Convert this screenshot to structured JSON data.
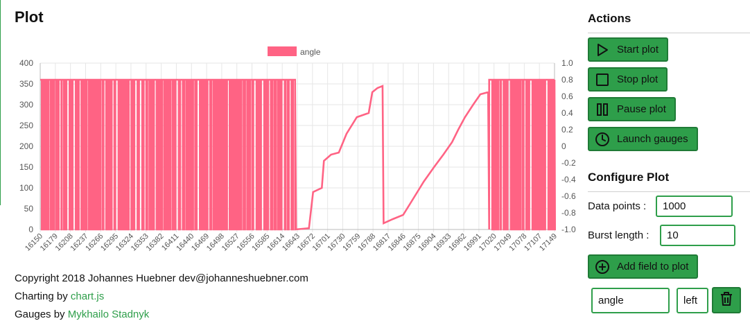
{
  "page": {
    "title": "Plot"
  },
  "chart_data": {
    "type": "line",
    "series": [
      {
        "name": "angle",
        "color": "#ff6384",
        "axis": "left"
      }
    ],
    "legend": {
      "position": "top",
      "label": "angle"
    },
    "y_left": {
      "ylim": [
        0,
        400
      ],
      "ticks": [
        0,
        50,
        100,
        150,
        200,
        250,
        300,
        350,
        400
      ]
    },
    "y_right": {
      "ylim": [
        -1.0,
        1.0
      ],
      "ticks": [
        "-1.0",
        "-0.8",
        "-0.6",
        "-0.4",
        "-0.2",
        "0",
        "0.2",
        "0.4",
        "0.6",
        "0.8",
        "1.0"
      ]
    },
    "x": {
      "range": [
        16150,
        17149
      ],
      "tick_labels": [
        "16150",
        "16179",
        "16208",
        "16237",
        "16266",
        "16295",
        "16324",
        "16353",
        "16382",
        "16411",
        "16440",
        "16469",
        "16498",
        "16527",
        "16556",
        "16585",
        "16614",
        "16643",
        "16672",
        "16701",
        "16730",
        "16759",
        "16788",
        "16817",
        "16846",
        "16875",
        "16904",
        "16933",
        "16962",
        "16991",
        "17020",
        "17049",
        "17078",
        "17107",
        "17149"
      ]
    },
    "grid": true,
    "segments": [
      {
        "kind": "oscillate",
        "x": [
          16150,
          16645
        ],
        "low": 0,
        "high": 360
      },
      {
        "kind": "ramp",
        "points": [
          [
            16645,
            0
          ],
          [
            16672,
            3
          ],
          [
            16680,
            90
          ],
          [
            16697,
            100
          ],
          [
            16701,
            165
          ],
          [
            16715,
            180
          ],
          [
            16730,
            185
          ],
          [
            16745,
            230
          ],
          [
            16765,
            270
          ],
          [
            16788,
            280
          ],
          [
            16795,
            330
          ],
          [
            16805,
            340
          ],
          [
            16815,
            345
          ],
          [
            16817,
            15
          ],
          [
            16835,
            25
          ],
          [
            16855,
            35
          ],
          [
            16870,
            65
          ],
          [
            16885,
            95
          ],
          [
            16895,
            115
          ],
          [
            16915,
            150
          ],
          [
            16933,
            180
          ],
          [
            16950,
            210
          ],
          [
            16962,
            240
          ],
          [
            16975,
            270
          ],
          [
            16991,
            300
          ],
          [
            17005,
            325
          ],
          [
            17020,
            330
          ],
          [
            17022,
            0
          ]
        ]
      },
      {
        "kind": "oscillate",
        "x": [
          17022,
          17149
        ],
        "low": 0,
        "high": 360
      }
    ]
  },
  "footer": {
    "copyright": "Copyright 2018 Johannes Huebner dev@johanneshuebner.com",
    "charting_prefix": "Charting by ",
    "charting_link": "chart.js",
    "gauges_prefix": "Gauges by ",
    "gauges_link": "Mykhailo Stadnyk"
  },
  "actions": {
    "heading": "Actions",
    "start": "Start plot",
    "stop": "Stop plot",
    "pause": "Pause plot",
    "gauges": "Launch gauges"
  },
  "configure": {
    "heading": "Configure Plot",
    "data_points_label": "Data points :",
    "data_points_value": "1000",
    "burst_label": "Burst length :",
    "burst_value": "10",
    "add_field": "Add field to plot",
    "field_name": "angle",
    "field_axis": "left"
  },
  "colors": {
    "accent": "#2e9e4a",
    "series": "#ff6384"
  }
}
